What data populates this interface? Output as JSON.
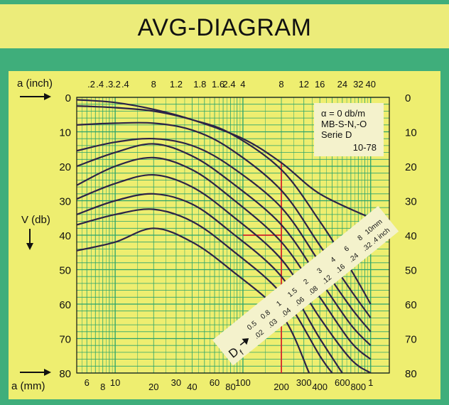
{
  "title": "AVG-DIAGRAM",
  "colors": {
    "background": "#3fae7b",
    "panel": "#eeee70",
    "title_band": "#ecec7a",
    "grid": "#2aa36c",
    "curve": "#2c2347",
    "highlight": "#d6262b",
    "marker": "#1f9a4a",
    "label_box": "#f4f2cc"
  },
  "info_box": {
    "line1": "α = 0 db/m",
    "line2": "MB-S-N,-O",
    "line3": "Serie D",
    "line4": "10-78"
  },
  "axis_labels": {
    "top_unit": "a (inch)",
    "bottom_unit": "a (mm)",
    "left_unit": "V (db)"
  },
  "chart_data": {
    "type": "line",
    "title": "AVG-DIAGRAM",
    "y_label": "V (db)",
    "ylim": [
      0,
      80
    ],
    "y_inverted": true,
    "y_ticks": [
      0,
      10,
      20,
      30,
      40,
      50,
      60,
      70,
      80
    ],
    "x_bottom_label": "a (mm)",
    "x_bottom_scale": "log",
    "x_bottom_ticks": [
      "6",
      "8",
      "10",
      "20",
      "30",
      "40",
      "60",
      "80",
      "100",
      "200",
      "300",
      "400",
      "600",
      "800",
      "1"
    ],
    "x_top_label": "a (inch)",
    "x_top_scale": "log",
    "x_top_ticks": [
      ".2",
      ".4",
      ".3",
      ".2",
      ".4",
      "8",
      "1.2",
      "1.8",
      "1.6",
      "2.4",
      "4",
      "8",
      "12",
      "16",
      "24",
      "32",
      "40"
    ],
    "grid": true,
    "df_label": "D",
    "df_subscript": "f",
    "df_values_mm": [
      "0.5",
      "0.8",
      "1",
      "1.5",
      "2",
      "3",
      "4",
      "6",
      "8",
      "10mm"
    ],
    "df_values_inch": [
      ".02",
      ".03",
      ".04",
      ".06",
      ".08",
      ".12",
      ".16",
      ".24",
      ".32",
      ".4 inch"
    ],
    "series": [
      {
        "points": [
          [
            5,
            0.7
          ],
          [
            10,
            1.5
          ],
          [
            20,
            3.5
          ],
          [
            40,
            6.5
          ],
          [
            100,
            12
          ],
          [
            200,
            19
          ],
          [
            400,
            28
          ],
          [
            1000,
            35
          ]
        ]
      },
      {
        "points": [
          [
            5,
            2.5
          ],
          [
            10,
            3
          ],
          [
            20,
            4
          ],
          [
            40,
            6.5
          ],
          [
            80,
            10.5
          ],
          [
            200,
            21
          ],
          [
            400,
            36
          ],
          [
            700,
            50
          ],
          [
            1000,
            60
          ]
        ]
      },
      {
        "points": [
          [
            5,
            8
          ],
          [
            10,
            7.5
          ],
          [
            20,
            7.5
          ],
          [
            40,
            9.5
          ],
          [
            80,
            15
          ],
          [
            200,
            27
          ],
          [
            400,
            43
          ],
          [
            700,
            56
          ],
          [
            1000,
            64
          ]
        ]
      },
      {
        "points": [
          [
            5,
            15.5
          ],
          [
            10,
            13
          ],
          [
            20,
            12
          ],
          [
            40,
            14
          ],
          [
            80,
            20
          ],
          [
            200,
            32
          ],
          [
            400,
            48
          ],
          [
            700,
            61
          ],
          [
            1000,
            68
          ]
        ]
      },
      {
        "points": [
          [
            5,
            20
          ],
          [
            10,
            16
          ],
          [
            20,
            13.5
          ],
          [
            40,
            17
          ],
          [
            80,
            24.5
          ],
          [
            200,
            37
          ],
          [
            400,
            53
          ],
          [
            700,
            66
          ],
          [
            1000,
            72
          ]
        ]
      },
      {
        "points": [
          [
            5,
            25.5
          ],
          [
            10,
            20
          ],
          [
            20,
            17.5
          ],
          [
            40,
            21
          ],
          [
            80,
            29
          ],
          [
            200,
            42
          ],
          [
            400,
            58
          ],
          [
            700,
            71
          ],
          [
            1000,
            76
          ]
        ]
      },
      {
        "points": [
          [
            5,
            29.5
          ],
          [
            10,
            25
          ],
          [
            20,
            22.5
          ],
          [
            40,
            26
          ],
          [
            80,
            34
          ],
          [
            200,
            47
          ],
          [
            400,
            64
          ],
          [
            700,
            76
          ],
          [
            1000,
            80
          ]
        ]
      },
      {
        "points": [
          [
            5,
            34
          ],
          [
            10,
            30
          ],
          [
            20,
            28
          ],
          [
            40,
            31
          ],
          [
            80,
            39
          ],
          [
            200,
            52
          ],
          [
            400,
            70
          ],
          [
            600,
            80
          ]
        ]
      },
      {
        "points": [
          [
            5,
            37
          ],
          [
            10,
            34
          ],
          [
            20,
            32.5
          ],
          [
            40,
            36
          ],
          [
            80,
            44
          ],
          [
            200,
            57
          ],
          [
            400,
            75
          ],
          [
            500,
            80
          ]
        ]
      },
      {
        "points": [
          [
            5,
            44.5
          ],
          [
            10,
            42
          ],
          [
            20,
            38
          ],
          [
            40,
            42
          ],
          [
            80,
            50
          ],
          [
            200,
            63
          ],
          [
            330,
            80
          ]
        ]
      }
    ],
    "highlight": {
      "vertical_at_mm": 200,
      "horizontal_at_db": 40,
      "horizontal_from_mm": 100
    },
    "marker": {
      "x_mm": 1000,
      "y_db": 36,
      "symbol": "star"
    }
  }
}
